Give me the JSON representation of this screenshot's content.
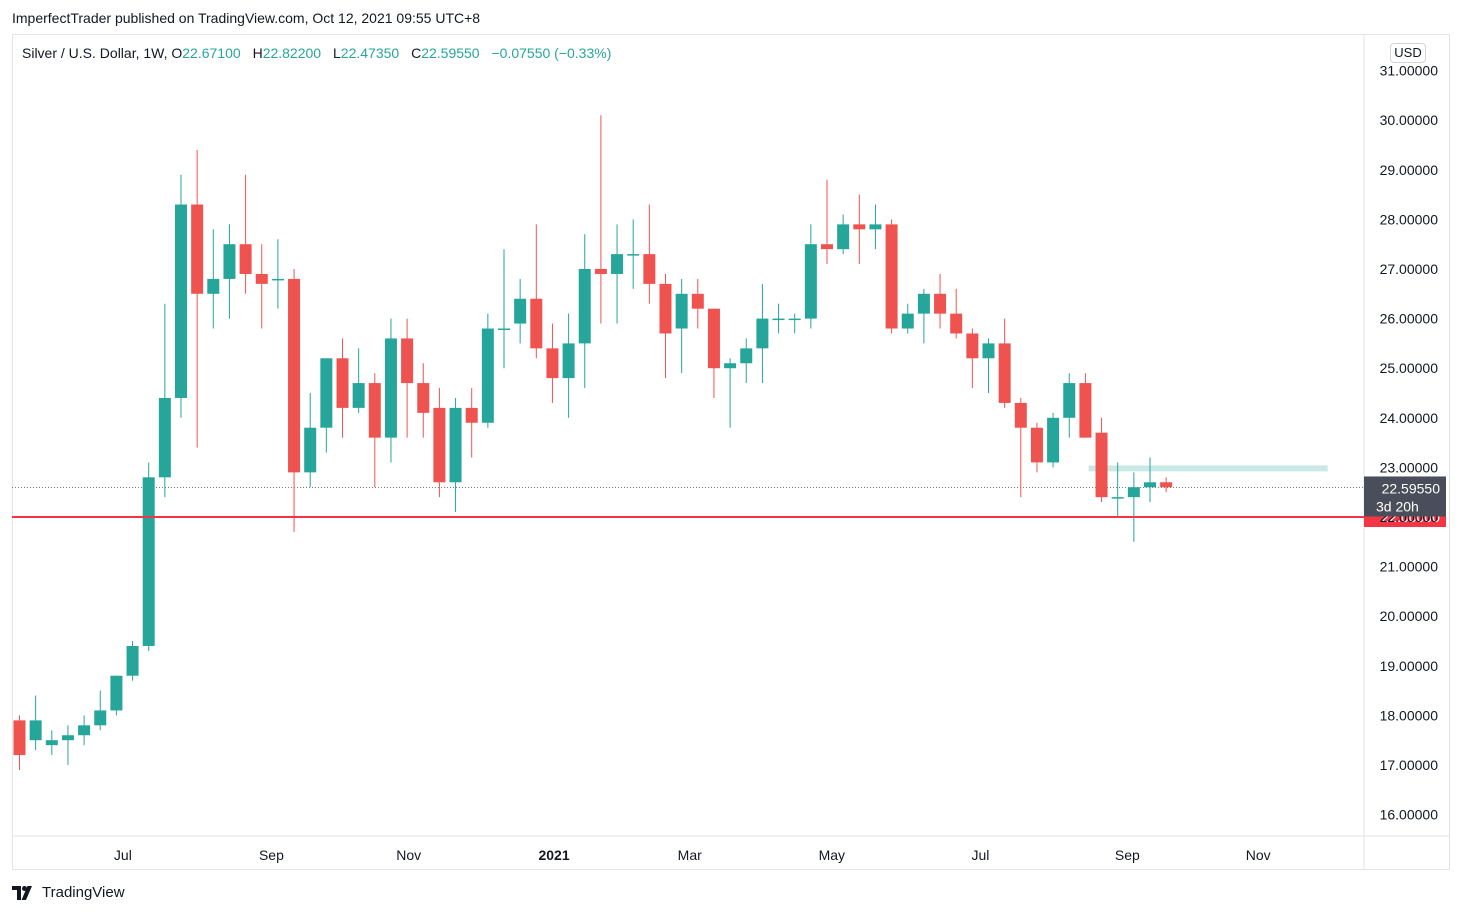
{
  "publication": {
    "text": "ImperfectTrader published on TradingView.com, Oct 12, 2021 09:55 UTC+8"
  },
  "legend": {
    "symbol": "Silver / U.S. Dollar, 1W,",
    "open_label": "O",
    "open": "22.67100",
    "high_label": "H",
    "high": "22.82200",
    "low_label": "L",
    "low": "22.47350",
    "close_label": "C",
    "close": "22.59550",
    "change": "−0.07550 (−0.33%)"
  },
  "currency": "USD",
  "footer": {
    "brand": "TradingView"
  },
  "colors": {
    "up": "#26a69a",
    "down": "#ef5350",
    "support_line": "#f23645",
    "zone": "#b2dfdb",
    "price_badge": "#4a4e5a"
  },
  "chart_data": {
    "type": "candlestick",
    "timeframe": "1W",
    "ylim": [
      15.6,
      31.8
    ],
    "y_ticks": [
      16,
      17,
      18,
      19,
      20,
      21,
      22,
      23,
      24,
      25,
      26,
      27,
      28,
      29,
      30,
      31
    ],
    "y_tick_labels": [
      "16.00000",
      "17.00000",
      "18.00000",
      "19.00000",
      "20.00000",
      "21.00000",
      "22.00000",
      "23.00000",
      "24.00000",
      "25.00000",
      "26.00000",
      "27.00000",
      "28.00000",
      "29.00000",
      "30.00000",
      "31.00000"
    ],
    "x_ticks": [
      {
        "label": "Jul",
        "index": 6.4,
        "bold": false
      },
      {
        "label": "Sep",
        "index": 15.6,
        "bold": false
      },
      {
        "label": "Nov",
        "index": 24.1,
        "bold": false
      },
      {
        "label": "2021",
        "index": 33.1,
        "bold": true
      },
      {
        "label": "Mar",
        "index": 41.5,
        "bold": false
      },
      {
        "label": "May",
        "index": 50.3,
        "bold": false
      },
      {
        "label": "Jul",
        "index": 59.5,
        "bold": false
      },
      {
        "label": "Sep",
        "index": 68.6,
        "bold": false
      },
      {
        "label": "Nov",
        "index": 76.7,
        "bold": false
      }
    ],
    "candles": [
      [
        17.9,
        17.2,
        18.0,
        16.9
      ],
      [
        17.5,
        17.9,
        18.4,
        17.3
      ],
      [
        17.4,
        17.5,
        17.7,
        17.2
      ],
      [
        17.5,
        17.6,
        17.8,
        17.0
      ],
      [
        17.6,
        17.8,
        18.0,
        17.4
      ],
      [
        17.8,
        18.1,
        18.5,
        17.7
      ],
      [
        18.1,
        18.8,
        18.8,
        18.0
      ],
      [
        18.8,
        19.4,
        19.5,
        18.7
      ],
      [
        19.4,
        22.8,
        23.1,
        19.3
      ],
      [
        22.8,
        24.4,
        26.3,
        22.4
      ],
      [
        24.4,
        28.3,
        28.9,
        24.0
      ],
      [
        28.3,
        26.5,
        29.4,
        23.4
      ],
      [
        26.5,
        26.8,
        27.8,
        25.8
      ],
      [
        26.8,
        27.5,
        27.9,
        26.0
      ],
      [
        27.5,
        26.9,
        28.9,
        26.5
      ],
      [
        26.9,
        26.7,
        27.5,
        25.8
      ],
      [
        26.8,
        26.8,
        27.6,
        26.2
      ],
      [
        26.8,
        22.9,
        27.0,
        21.7
      ],
      [
        22.9,
        23.8,
        24.5,
        22.6
      ],
      [
        23.8,
        25.2,
        25.2,
        23.3
      ],
      [
        25.2,
        24.2,
        25.6,
        23.6
      ],
      [
        24.2,
        24.7,
        25.4,
        24.1
      ],
      [
        24.7,
        23.6,
        24.9,
        22.6
      ],
      [
        23.6,
        25.6,
        26.0,
        23.1
      ],
      [
        25.6,
        24.7,
        26.0,
        23.6
      ],
      [
        24.7,
        24.1,
        25.1,
        23.6
      ],
      [
        24.2,
        22.7,
        24.6,
        22.4
      ],
      [
        22.7,
        24.2,
        24.4,
        22.1
      ],
      [
        24.2,
        23.9,
        24.6,
        23.2
      ],
      [
        23.9,
        25.8,
        26.1,
        23.8
      ],
      [
        25.8,
        25.8,
        27.4,
        25.0
      ],
      [
        25.9,
        26.4,
        26.8,
        25.5
      ],
      [
        26.4,
        25.4,
        27.9,
        25.2
      ],
      [
        25.4,
        24.8,
        25.9,
        24.3
      ],
      [
        24.8,
        25.5,
        26.1,
        24.0
      ],
      [
        25.5,
        27.0,
        27.7,
        24.6
      ],
      [
        27.0,
        26.9,
        30.1,
        25.9
      ],
      [
        26.9,
        27.3,
        27.9,
        25.9
      ],
      [
        27.3,
        27.3,
        28.0,
        26.6
      ],
      [
        27.3,
        26.7,
        28.3,
        26.3
      ],
      [
        26.7,
        25.7,
        26.9,
        24.8
      ],
      [
        25.8,
        26.5,
        26.8,
        24.9
      ],
      [
        26.5,
        26.2,
        26.8,
        25.8
      ],
      [
        26.2,
        25.0,
        26.2,
        24.4
      ],
      [
        25.0,
        25.1,
        25.2,
        23.8
      ],
      [
        25.1,
        25.4,
        25.6,
        24.7
      ],
      [
        25.4,
        26.0,
        26.7,
        24.7
      ],
      [
        26.0,
        26.0,
        26.3,
        25.7
      ],
      [
        26.0,
        26.0,
        26.1,
        25.7
      ],
      [
        26.0,
        27.5,
        27.9,
        25.8
      ],
      [
        27.5,
        27.4,
        28.8,
        27.1
      ],
      [
        27.4,
        27.9,
        28.1,
        27.3
      ],
      [
        27.9,
        27.8,
        28.5,
        27.1
      ],
      [
        27.8,
        27.9,
        28.3,
        27.4
      ],
      [
        27.9,
        25.8,
        28.0,
        25.7
      ],
      [
        25.8,
        26.1,
        26.3,
        25.7
      ],
      [
        26.1,
        26.5,
        26.6,
        25.5
      ],
      [
        26.5,
        26.1,
        26.9,
        25.8
      ],
      [
        26.1,
        25.7,
        26.6,
        25.6
      ],
      [
        25.7,
        25.2,
        25.8,
        24.6
      ],
      [
        25.2,
        25.5,
        25.6,
        24.5
      ],
      [
        25.5,
        24.3,
        26.0,
        24.2
      ],
      [
        24.3,
        23.8,
        24.4,
        22.4
      ],
      [
        23.8,
        23.1,
        23.9,
        22.9
      ],
      [
        23.1,
        24.0,
        24.1,
        23.0
      ],
      [
        24.0,
        24.7,
        24.9,
        23.6
      ],
      [
        24.7,
        23.6,
        24.9,
        23.6
      ],
      [
        23.7,
        22.4,
        24.0,
        22.3
      ],
      [
        22.4,
        22.4,
        23.1,
        22.0
      ],
      [
        22.4,
        22.6,
        22.9,
        21.5
      ],
      [
        22.6,
        22.7,
        23.2,
        22.3
      ],
      [
        22.7,
        22.6,
        22.8,
        22.5
      ]
    ],
    "horizontal_lines": [
      {
        "price": 22.0,
        "label": "22.00000",
        "color": "#f23645"
      }
    ],
    "zones": [
      {
        "index_start": 66.2,
        "index_end": 81.0,
        "price_low": 22.92,
        "price_high": 23.04
      }
    ],
    "last_price": {
      "value": 22.5955,
      "label": "22.59550",
      "countdown": "3d 20h"
    }
  }
}
